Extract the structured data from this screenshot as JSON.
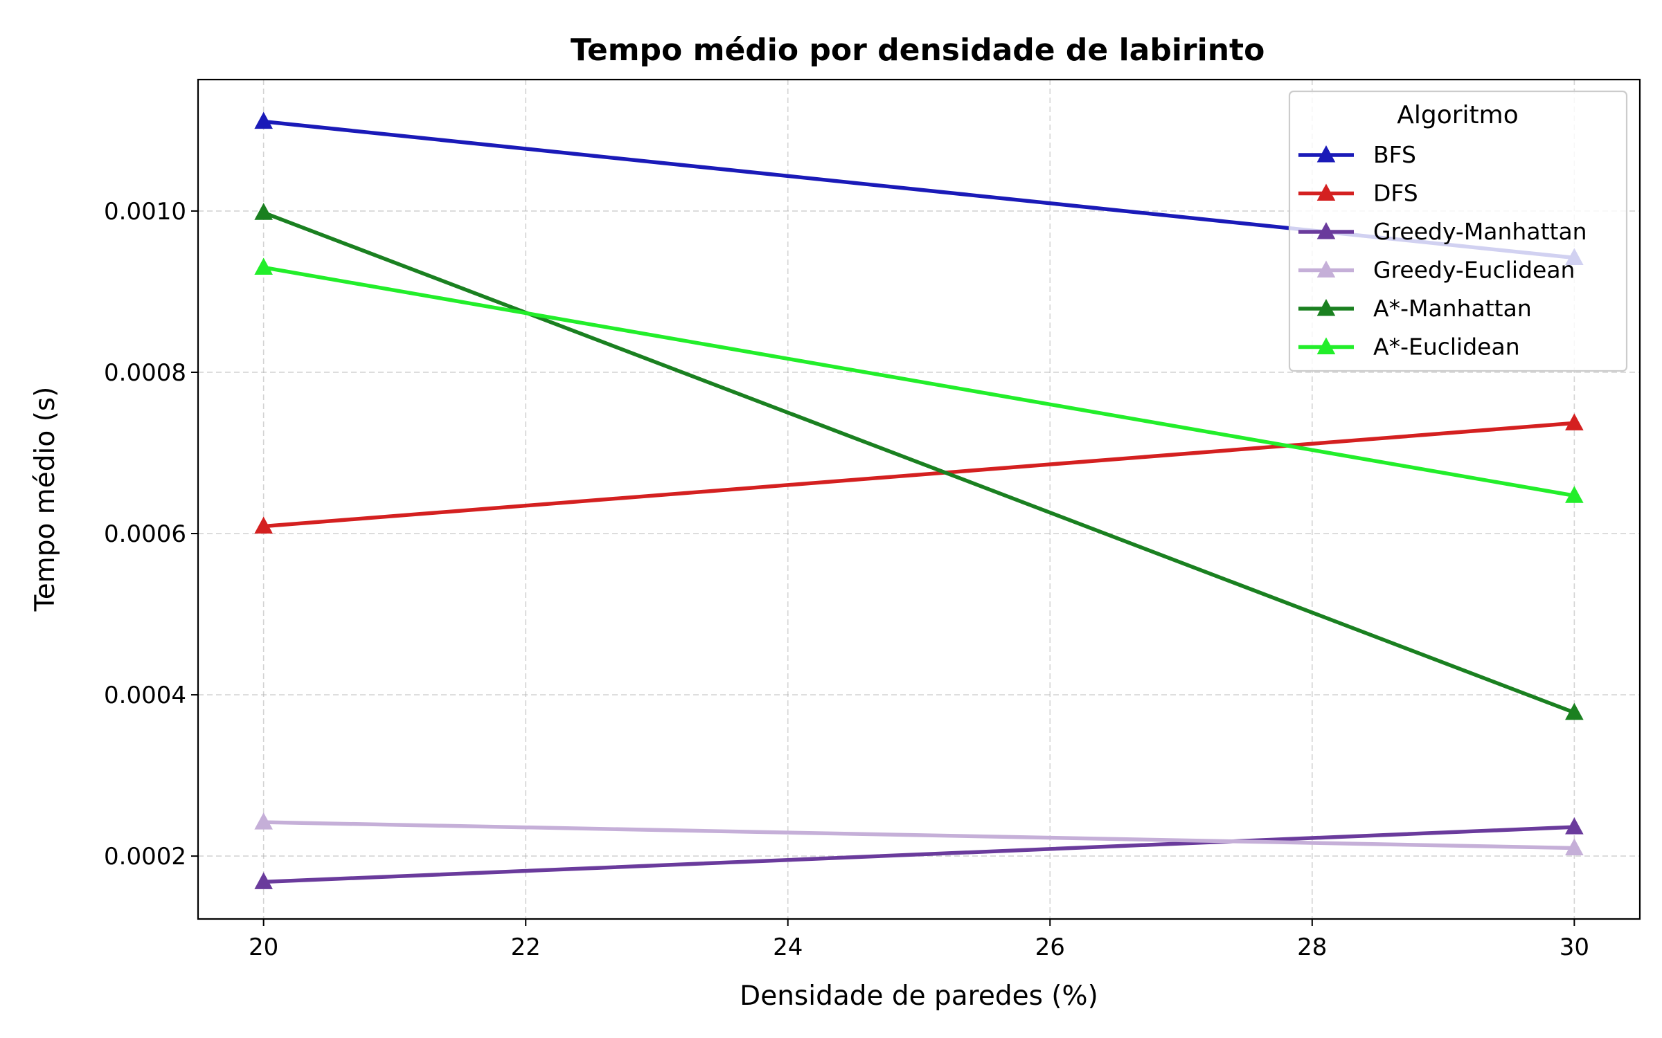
{
  "chart_data": {
    "type": "line",
    "title": "Tempo médio por densidade de labirinto",
    "xlabel": "Densidade de paredes (%)",
    "ylabel": "Tempo médio (s)",
    "x": [
      20,
      30
    ],
    "xlim": [
      19.5,
      30.5
    ],
    "ylim": [
      0.000122,
      0.001163
    ],
    "xticks": [
      "20",
      "22",
      "24",
      "26",
      "28",
      "30"
    ],
    "yticks": [
      "0.0002",
      "0.0004",
      "0.0006",
      "0.0008",
      "0.0010"
    ],
    "grid": true,
    "legend": {
      "title": "Algoritmo",
      "position": "top-right"
    },
    "series": [
      {
        "name": "BFS",
        "color": "#1a1ab8",
        "values": [
          0.001111,
          0.000942
        ]
      },
      {
        "name": "DFS",
        "color": "#d42020",
        "values": [
          0.000609,
          0.000737
        ]
      },
      {
        "name": "Greedy-Manhattan",
        "color": "#6a3b9c",
        "values": [
          0.000168,
          0.000236
        ]
      },
      {
        "name": "Greedy-Euclidean",
        "color": "#c5afd8",
        "values": [
          0.000242,
          0.00021
        ]
      },
      {
        "name": "A*-Manhattan",
        "color": "#1a8020",
        "values": [
          0.000998,
          0.000378
        ]
      },
      {
        "name": "A*-Euclidean",
        "color": "#22ee2a",
        "values": [
          0.00093,
          0.000647
        ]
      }
    ]
  }
}
